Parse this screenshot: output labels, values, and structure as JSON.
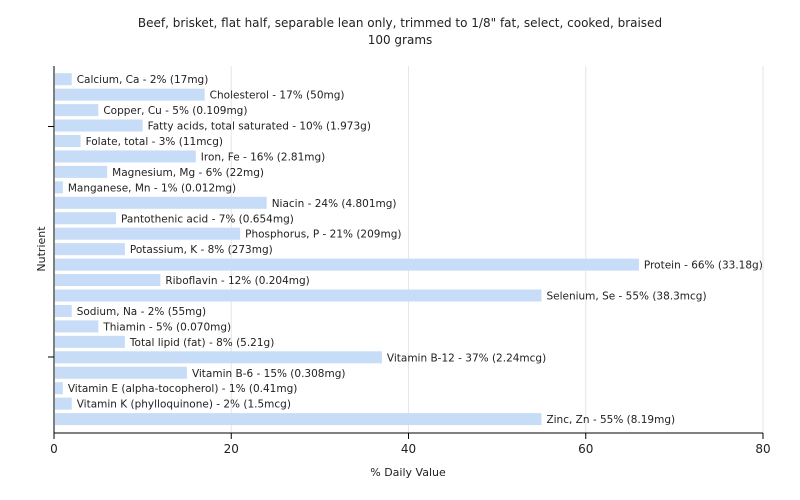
{
  "chart_data": {
    "type": "bar",
    "orientation": "horizontal",
    "title": "Beef, brisket, flat half, separable lean only, trimmed to 1/8\" fat, select, cooked, braised",
    "subtitle": "100 grams",
    "xlabel": "% Daily Value",
    "ylabel": "Nutrient",
    "xlim": [
      0,
      80
    ],
    "xticks": [
      0,
      20,
      40,
      60,
      80
    ],
    "grid": true,
    "bar_color": "#c6dcf7",
    "categories": [
      "Calcium, Ca",
      "Cholesterol",
      "Copper, Cu",
      "Fatty acids, total saturated",
      "Folate, total",
      "Iron, Fe",
      "Magnesium, Mg",
      "Manganese, Mn",
      "Niacin",
      "Pantothenic acid",
      "Phosphorus, P",
      "Potassium, K",
      "Protein",
      "Riboflavin",
      "Selenium, Se",
      "Sodium, Na",
      "Thiamin",
      "Total lipid (fat)",
      "Vitamin B-12",
      "Vitamin B-6",
      "Vitamin E (alpha-tocopherol)",
      "Vitamin K (phylloquinone)",
      "Zinc, Zn"
    ],
    "values": [
      2,
      17,
      5,
      10,
      3,
      16,
      6,
      1,
      24,
      7,
      21,
      8,
      66,
      12,
      55,
      2,
      5,
      8,
      37,
      15,
      1,
      2,
      55
    ],
    "labels": [
      "Calcium, Ca - 2% (17mg)",
      "Cholesterol - 17% (50mg)",
      "Copper, Cu - 5% (0.109mg)",
      "Fatty acids, total saturated - 10% (1.973g)",
      "Folate, total - 3% (11mcg)",
      "Iron, Fe - 16% (2.81mg)",
      "Magnesium, Mg - 6% (22mg)",
      "Manganese, Mn - 1% (0.012mg)",
      "Niacin - 24% (4.801mg)",
      "Pantothenic acid - 7% (0.654mg)",
      "Phosphorus, P - 21% (209mg)",
      "Potassium, K - 8% (273mg)",
      "Protein - 66% (33.18g)",
      "Riboflavin - 12% (0.204mg)",
      "Selenium, Se - 55% (38.3mcg)",
      "Sodium, Na - 2% (55mg)",
      "Thiamin - 5% (0.070mg)",
      "Total lipid (fat) - 8% (5.21g)",
      "Vitamin B-12 - 37% (2.24mcg)",
      "Vitamin B-6 - 15% (0.308mg)",
      "Vitamin E (alpha-tocopherol) - 1% (0.41mg)",
      "Vitamin K (phylloquinone) - 2% (1.5mcg)",
      "Zinc, Zn - 55% (8.19mg)"
    ]
  }
}
